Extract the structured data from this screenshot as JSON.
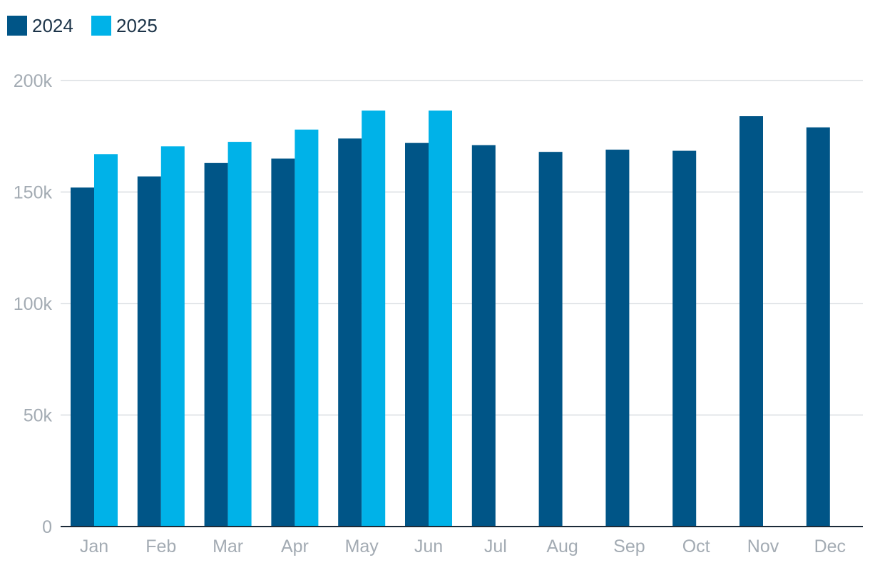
{
  "chart_data": {
    "type": "bar",
    "categories": [
      "Jan",
      "Feb",
      "Mar",
      "Apr",
      "May",
      "Jun",
      "Jul",
      "Aug",
      "Sep",
      "Oct",
      "Nov",
      "Dec"
    ],
    "series": [
      {
        "name": "2024",
        "color": "#005587",
        "values": [
          152000,
          157000,
          163000,
          165000,
          174000,
          172000,
          171000,
          168000,
          169000,
          168500,
          184000,
          179000
        ]
      },
      {
        "name": "2025",
        "color": "#00b2e8",
        "values": [
          167000,
          170500,
          172500,
          178000,
          186500,
          186500,
          null,
          null,
          null,
          null,
          null,
          null
        ]
      }
    ],
    "y_ticks": [
      {
        "value": 0,
        "label": "0"
      },
      {
        "value": 50000,
        "label": "50k"
      },
      {
        "value": 100000,
        "label": "100k"
      },
      {
        "value": 150000,
        "label": "150k"
      },
      {
        "value": 200000,
        "label": "200k"
      }
    ],
    "ylim": [
      0,
      200000
    ],
    "grid": true,
    "legend_position": "top-left",
    "colors": {
      "gridline": "#e3e6e9",
      "axis": "#1b2a38",
      "tick_label": "#a3abb3",
      "legend_text": "#1b3348"
    }
  }
}
